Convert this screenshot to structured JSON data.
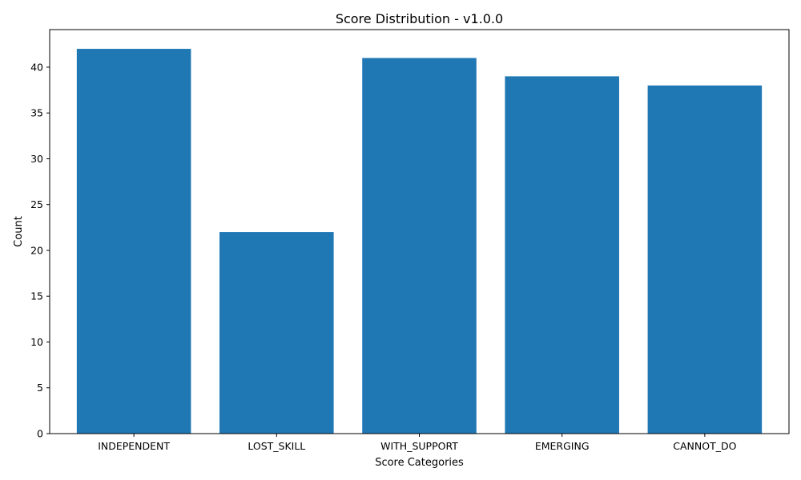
{
  "chart_data": {
    "type": "bar",
    "title": "Score Distribution - v1.0.0",
    "xlabel": "Score Categories",
    "ylabel": "Count",
    "categories": [
      "INDEPENDENT",
      "LOST_SKILL",
      "WITH_SUPPORT",
      "EMERGING",
      "CANNOT_DO"
    ],
    "values": [
      42,
      22,
      41,
      39,
      38
    ],
    "ylim": [
      0,
      44.1
    ],
    "yticks": [
      0,
      5,
      10,
      15,
      20,
      25,
      30,
      35,
      40
    ],
    "grid": false,
    "bar_color": "#1f77b4"
  }
}
